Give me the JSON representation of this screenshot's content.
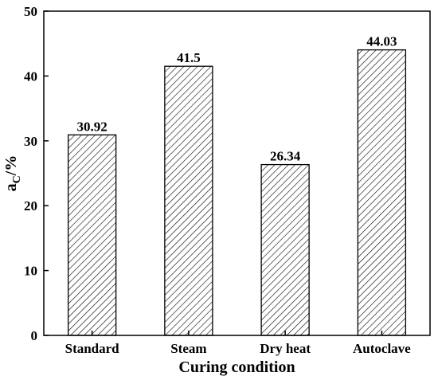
{
  "chart_data": {
    "type": "bar",
    "categories": [
      "Standard",
      "Steam",
      "Dry heat",
      "Autoclave"
    ],
    "values": [
      30.92,
      41.5,
      26.34,
      44.03
    ],
    "value_labels": [
      "30.92",
      "41.5",
      "26.34",
      "44.03"
    ],
    "title": "",
    "xlabel": "Curing condition",
    "ylabel": {
      "main": "a",
      "subscript": "C",
      "suffix": "/%"
    },
    "ylim": [
      0,
      50
    ],
    "yticks": [
      0,
      10,
      20,
      30,
      40,
      50
    ],
    "bar_fill": "diagonal-hatch",
    "bar_color": "#000000",
    "grid": false,
    "legend": "none"
  }
}
